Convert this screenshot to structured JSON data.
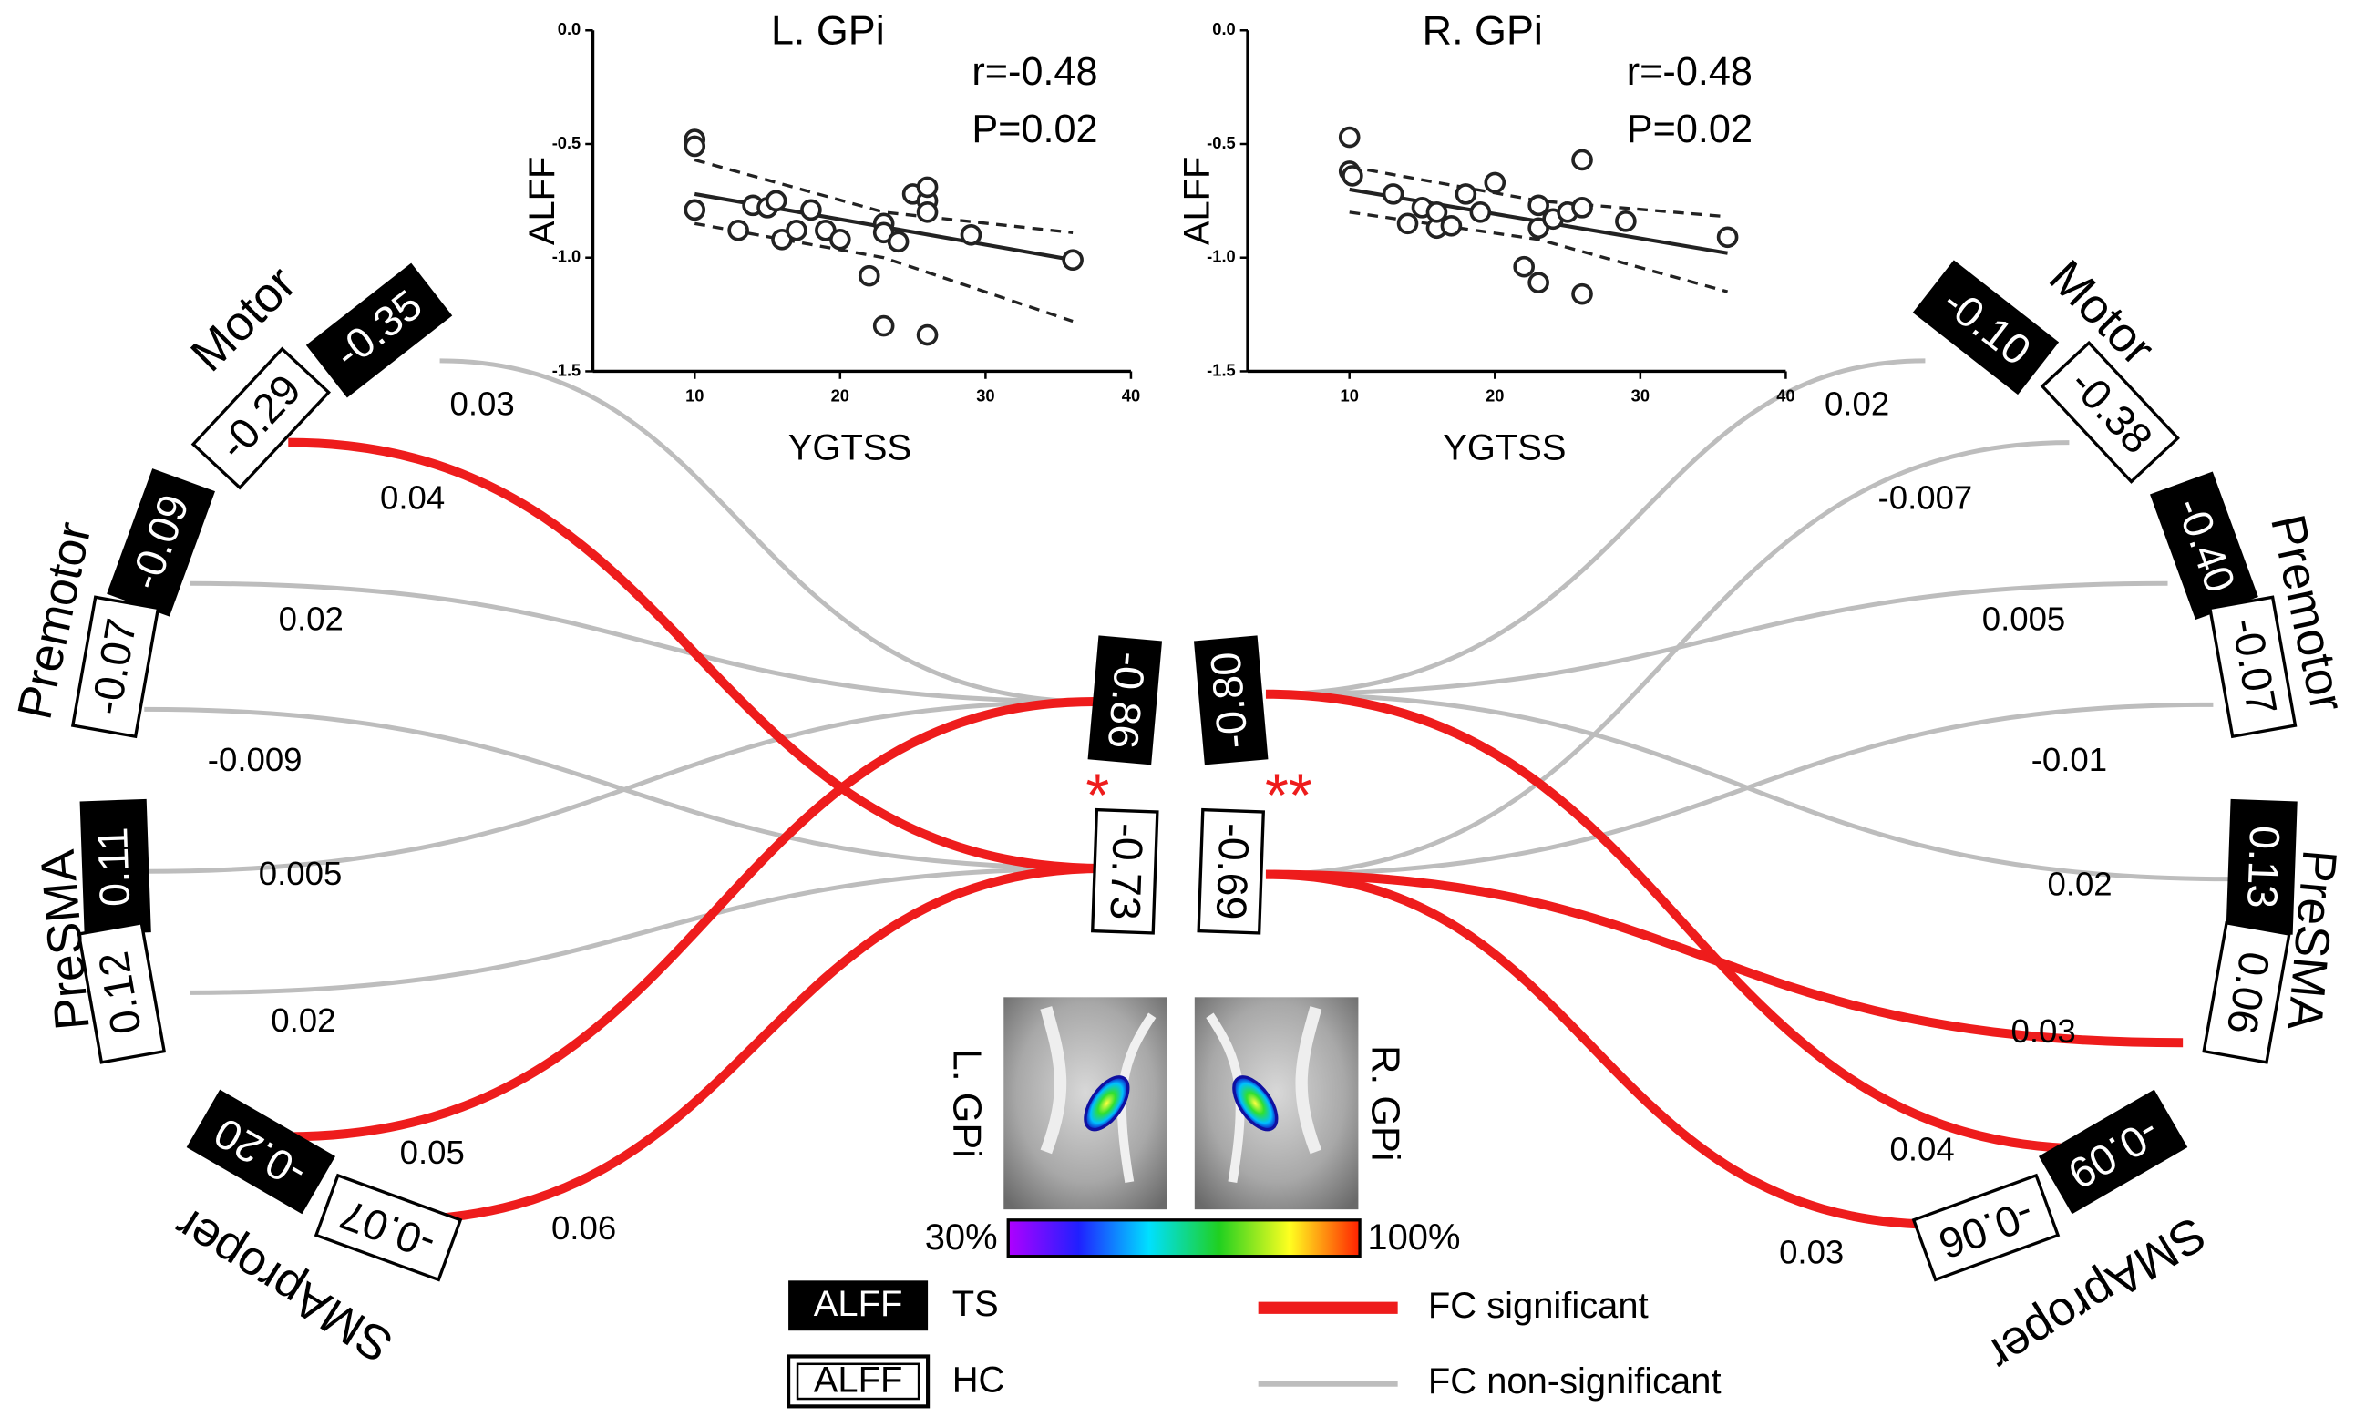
{
  "chart_data": [
    {
      "type": "scatter",
      "title": "L. GPi",
      "annotations": [
        "r=-0.48",
        "P=0.02"
      ],
      "x_label": "YGTSS",
      "y_label": "ALFF",
      "x": [
        10,
        10,
        10,
        13,
        14,
        15,
        15.6,
        16,
        17,
        18,
        19,
        20,
        22,
        23,
        23,
        23,
        24,
        25,
        26,
        26,
        26,
        26,
        29,
        36
      ],
      "y": [
        -0.48,
        -0.51,
        -0.79,
        -0.88,
        -0.77,
        -0.78,
        -0.75,
        -0.92,
        -0.88,
        -0.79,
        -0.88,
        -0.92,
        -1.08,
        -0.85,
        -0.89,
        -1.3,
        -0.93,
        -0.72,
        -0.75,
        -0.8,
        -0.69,
        -1.34,
        -0.9,
        -1.01
      ],
      "fit": {
        "x": [
          10,
          36
        ],
        "y": [
          -0.72,
          -1.01
        ]
      },
      "ci_upper": {
        "x": [
          10,
          23,
          36
        ],
        "y": [
          -0.57,
          -0.8,
          -0.89
        ]
      },
      "ci_lower": {
        "x": [
          10,
          23,
          36
        ],
        "y": [
          -0.85,
          -1.0,
          -1.28
        ]
      },
      "xlim": [
        3,
        40
      ],
      "ylim": [
        -1.5,
        0
      ],
      "xticks": [
        10,
        20,
        30,
        40
      ],
      "yticks": [
        {
          "value": 0,
          "label": "0.0"
        },
        -0.5,
        {
          "value": -1,
          "label": "-1.0"
        },
        -1.5
      ]
    },
    {
      "type": "scatter",
      "title": "R. GPi",
      "annotations": [
        "r=-0.48",
        "P=0.02"
      ],
      "x_label": "YGTSS",
      "y_label": "ALFF",
      "x": [
        10,
        10,
        10.2,
        13,
        14,
        15,
        16,
        16,
        17,
        18,
        19,
        20,
        22,
        23,
        23,
        23,
        24,
        25,
        26,
        26,
        26,
        29,
        36
      ],
      "y": [
        -0.47,
        -0.62,
        -0.64,
        -0.72,
        -0.85,
        -0.78,
        -0.87,
        -0.8,
        -0.86,
        -0.72,
        -0.8,
        -0.67,
        -1.04,
        -0.77,
        -0.87,
        -1.11,
        -0.83,
        -0.8,
        -0.78,
        -0.57,
        -1.16,
        -0.84,
        -0.91
      ],
      "fit": {
        "x": [
          10,
          36
        ],
        "y": [
          -0.7,
          -0.98
        ]
      },
      "ci_upper": {
        "x": [
          10,
          23,
          36
        ],
        "y": [
          -0.6,
          -0.75,
          -0.82
        ]
      },
      "ci_lower": {
        "x": [
          10,
          23,
          36
        ],
        "y": [
          -0.8,
          -0.92,
          -1.15
        ]
      },
      "xlim": [
        3,
        40
      ],
      "ylim": [
        -1.5,
        0
      ],
      "xticks": [
        10,
        20,
        30,
        40
      ],
      "yticks": [
        {
          "value": 0,
          "label": "0.0"
        },
        -0.5,
        {
          "value": -1,
          "label": "-1.0"
        },
        -1.5
      ]
    }
  ],
  "regions": [
    {
      "label": "Motor",
      "ts": "-0.35",
      "hc": "-0.29"
    },
    {
      "label": "Premotor",
      "ts": "-0.09",
      "hc": "-0.07"
    },
    {
      "label": "PreSMA",
      "ts": "0.11",
      "hc": "0.12"
    },
    {
      "label": "SMAproper",
      "ts": "-0.20",
      "hc": "-0.07"
    },
    {
      "label": "Motor",
      "ts": "-0.10",
      "hc": "-0.38"
    },
    {
      "label": "Premotor",
      "ts": "-0.40",
      "hc": "-0.07"
    },
    {
      "label": "PreSMA",
      "ts": "0.13",
      "hc": "0.06"
    },
    {
      "label": "SMAproper",
      "ts": "-0.09",
      "hc": "-0.06"
    }
  ],
  "centers": [
    {
      "ts": "-0.86",
      "hc": "-0.73",
      "marker": "*"
    },
    {
      "ts": "-0.80",
      "hc": "-0.69",
      "marker": "**"
    }
  ],
  "edges": [
    {
      "label": "0.03",
      "significant": false
    },
    {
      "label": "0.04",
      "significant": true
    },
    {
      "label": "0.02",
      "significant": false
    },
    {
      "label": "-0.009",
      "significant": false
    },
    {
      "label": "0.005",
      "significant": false
    },
    {
      "label": "0.02",
      "significant": false
    },
    {
      "label": "0.05",
      "significant": true
    },
    {
      "label": "0.06",
      "significant": true
    },
    {
      "label": "0.02",
      "significant": false
    },
    {
      "label": "-0.007",
      "significant": false
    },
    {
      "label": "0.005",
      "significant": false
    },
    {
      "label": "-0.01",
      "significant": false
    },
    {
      "label": "0.02",
      "significant": false
    },
    {
      "label": "0.03",
      "significant": true
    },
    {
      "label": "0.04",
      "significant": true
    },
    {
      "label": "0.03",
      "significant": true
    }
  ],
  "images": [
    {
      "label": "L. GPi"
    },
    {
      "label": "R. GPi"
    }
  ],
  "colorbar": {
    "min_label": "30%",
    "max_label": "100%"
  },
  "legend": {
    "ts_box": "ALFF",
    "ts_label": "TS",
    "hc_box": "ALFF",
    "hc_label": "HC",
    "sig_label": "FC significant",
    "nonsig_label": "FC non-significant"
  },
  "colors": {
    "significant": "#ee1c1c",
    "nonsignificant": "#bdbdbd"
  }
}
